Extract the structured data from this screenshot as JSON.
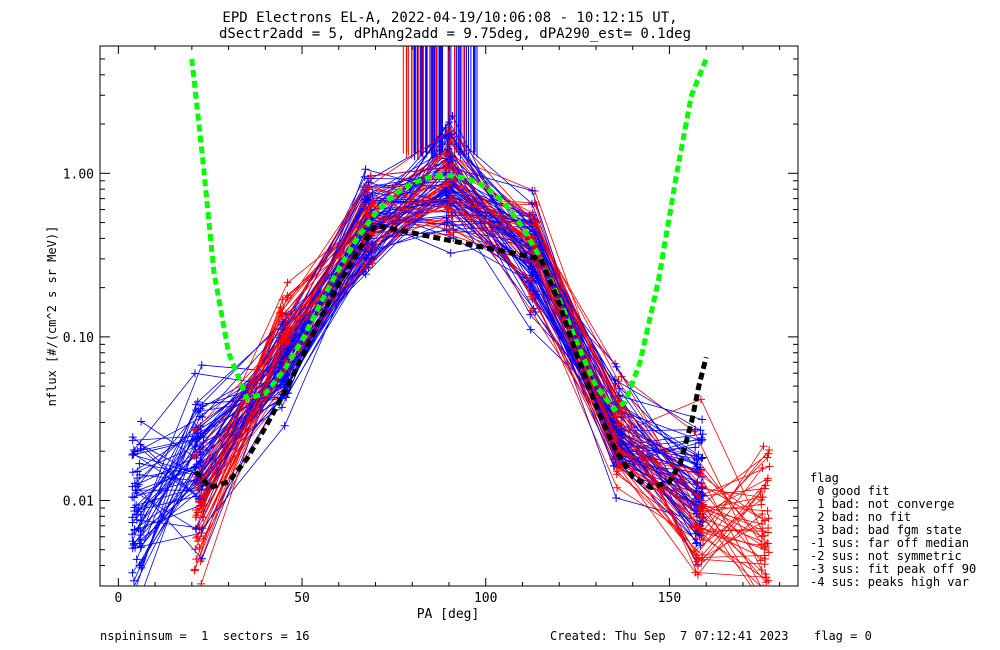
{
  "chart_data": {
    "type": "line",
    "title": "EPD Electrons EL-A, 2022-04-19/10:06:08 - 10:12:15 UT,",
    "subtitle": "dSectr2add = 5, dPhAng2add = 9.75deg, dPA290_est=   0.1deg",
    "xlabel": "PA [deg]",
    "ylabel": "nflux [#/(cm^2 s sr MeV)]",
    "xlim": [
      -5,
      185
    ],
    "ylim": [
      0.003,
      6.0
    ],
    "yscale": "log",
    "xticks": [
      0,
      50,
      100,
      150
    ],
    "xtick_labels": [
      "0",
      "50",
      "100",
      "150"
    ],
    "yticks": [
      0.01,
      0.1,
      1.0
    ],
    "ytick_labels": [
      "0.01",
      "0.10",
      "1.00"
    ],
    "grid": false,
    "spin_sector_pa": [
      5,
      22,
      45,
      68,
      90,
      113,
      136,
      158,
      176
    ],
    "series": [
      {
        "color": "#0000ff",
        "style": "line+plus",
        "x": [
          5,
          22,
          45,
          68,
          90,
          113,
          136,
          158
        ],
        "center": [
          0.009,
          0.016,
          0.07,
          0.45,
          0.92,
          0.3,
          0.025,
          0.011
        ],
        "n": 60
      },
      {
        "color": "#ff0000",
        "style": "line+plus",
        "x": [
          22,
          45,
          68,
          90,
          113,
          136,
          158,
          176
        ],
        "center": [
          0.01,
          0.09,
          0.5,
          0.9,
          0.35,
          0.025,
          0.008,
          0.007
        ],
        "n": 45
      },
      {
        "color": "#00ff00",
        "style": "dashed-fit",
        "x": [
          20,
          23,
          26,
          30,
          35,
          40,
          45,
          50,
          55,
          60,
          65,
          70,
          75,
          80,
          85,
          90,
          95,
          100,
          105,
          110,
          115,
          120,
          125,
          130,
          135,
          138,
          142,
          147,
          152,
          156,
          160
        ],
        "y": [
          5.0,
          1.2,
          0.25,
          0.08,
          0.042,
          0.045,
          0.062,
          0.095,
          0.16,
          0.26,
          0.4,
          0.57,
          0.74,
          0.87,
          0.95,
          0.97,
          0.93,
          0.83,
          0.66,
          0.47,
          0.3,
          0.17,
          0.09,
          0.05,
          0.036,
          0.04,
          0.07,
          0.22,
          1.0,
          3.0,
          5.0
        ]
      },
      {
        "color": "#000000",
        "style": "dashed-fit",
        "x": [
          21,
          25,
          30,
          35,
          40,
          45,
          50,
          55,
          60,
          65,
          70,
          115,
          120,
          125,
          130,
          135,
          140,
          145,
          150,
          153,
          156,
          158,
          160
        ],
        "y": [
          0.015,
          0.012,
          0.013,
          0.018,
          0.028,
          0.045,
          0.075,
          0.13,
          0.21,
          0.33,
          0.48,
          0.3,
          0.16,
          0.075,
          0.038,
          0.021,
          0.014,
          0.012,
          0.013,
          0.017,
          0.03,
          0.05,
          0.075
        ]
      }
    ]
  },
  "legend": {
    "header": "flag",
    "items": [
      " 0 good fit",
      " 1 bad: not converge",
      " 2 bad: no fit",
      " 3 bad: bad fgm state",
      "-1 sus: far off median",
      "-2 sus: not symmetric",
      "-3 sus: fit peak off 90",
      "-4 sus: peaks high var"
    ]
  },
  "footer": {
    "left": "nspininsum =  1  sectors = 16",
    "created": "Created: Thu Sep  7 07:12:41 2023",
    "flag": "flag = 0"
  }
}
